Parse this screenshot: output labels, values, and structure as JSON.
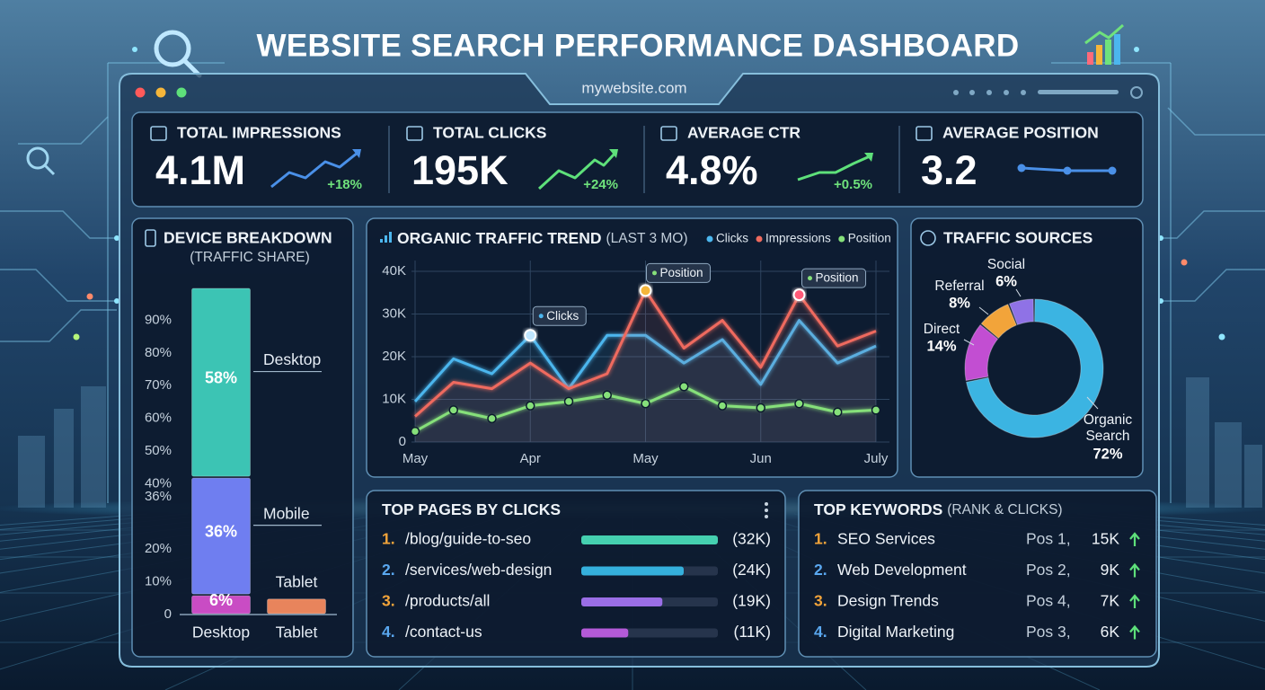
{
  "header": {
    "title": "WEBSITE SEARCH PERFORMANCE DASHBOARD",
    "url": "mywebsite.com"
  },
  "kpis": [
    {
      "label": "TOTAL IMPRESSIONS",
      "value": "4.1M",
      "change": "+18%"
    },
    {
      "label": "TOTAL CLICKS",
      "value": "195K",
      "change": "+24%"
    },
    {
      "label": "AVERAGE CTR",
      "value": "4.8%",
      "change": "+0.5%"
    },
    {
      "label": "AVERAGE POSITION",
      "value": "3.2"
    }
  ],
  "chart_data": [
    {
      "type": "bar",
      "stacked": true,
      "title": "DEVICE BREAKDOWN",
      "subtitle": "(TRAFFIC SHARE)",
      "categories": [
        "Desktop",
        "Tablet"
      ],
      "series": [
        {
          "name": "Tablet",
          "color": "#c94cc4",
          "colors": [
            "#c94cc4",
            "#e8845c"
          ],
          "values": [
            6,
            5
          ],
          "value_labels": [
            "6%",
            null
          ]
        },
        {
          "name": "Mobile",
          "color": "#6f7ef0",
          "values": [
            36,
            null
          ],
          "value_labels": [
            "36%",
            null
          ]
        },
        {
          "name": "Desktop",
          "color": "#3cc4b4",
          "values": [
            58,
            null
          ],
          "value_labels": [
            "58%",
            null
          ]
        }
      ],
      "ylim": [
        0,
        100
      ],
      "yticks": [
        0,
        {
          "value": 10,
          "label": "10%"
        },
        {
          "value": 20,
          "label": "20%"
        },
        {
          "value": 36,
          "label": "36%"
        },
        {
          "value": 40,
          "label": "40%"
        },
        {
          "value": 50,
          "label": "50%"
        },
        {
          "value": 60,
          "label": "60%"
        },
        {
          "value": 70,
          "label": "70%"
        },
        {
          "value": 80,
          "label": "80%"
        },
        {
          "value": 90,
          "label": "90%"
        }
      ],
      "grid": false
    },
    {
      "type": "line",
      "title": "ORGANIC TRAFFIC TREND",
      "subtitle": "(LAST 3 MO)",
      "categories": [
        "May",
        null,
        null,
        "Apr",
        null,
        null,
        "May",
        null,
        null,
        "Jun",
        null,
        null,
        "July"
      ],
      "series": [
        {
          "name": "Clicks",
          "color": "#4cb6ee",
          "area": true,
          "values": [
            9500,
            19500,
            16000,
            25000,
            12500,
            25000,
            25000,
            18500,
            24000,
            13500,
            28500,
            18500,
            22500
          ]
        },
        {
          "name": "Impressions",
          "color": "#ef6a5e",
          "area": true,
          "values": [
            6000,
            14000,
            12500,
            18500,
            12500,
            16000,
            35500,
            22000,
            28500,
            17500,
            34500,
            22500,
            26000
          ]
        },
        {
          "name": "Position",
          "color": "#86e07a",
          "markers": true,
          "values": [
            2500,
            7500,
            5500,
            8500,
            9500,
            11000,
            9000,
            13000,
            8500,
            8000,
            9000,
            7000,
            7500
          ]
        }
      ],
      "ylim": [
        0,
        40000
      ],
      "yticks": [
        0,
        {
          "value": 10000,
          "label": "10K"
        },
        {
          "value": 20000,
          "label": "20K"
        },
        {
          "value": 30000,
          "label": "30K"
        },
        {
          "value": 40000,
          "label": "40K"
        }
      ],
      "grid": true,
      "annotations": [
        "Clicks",
        "Position",
        "Position"
      ]
    },
    {
      "type": "pie",
      "donut": true,
      "title": "TRAFFIC SOURCES",
      "categories": [
        "Organic Search",
        "Direct",
        "Referral",
        "Social"
      ],
      "values": [
        72,
        14,
        8,
        6
      ],
      "value_labels": [
        "72%",
        "14%",
        "8%",
        "6%"
      ],
      "colors": [
        "#3bb4e2",
        "#c24ed2",
        "#f2a43a",
        "#8f72e6"
      ]
    },
    {
      "type": "bar",
      "horizontal": true,
      "title": "TOP PAGES BY CLICKS",
      "ranks": [
        "1.",
        "2.",
        "3.",
        "4."
      ],
      "categories": [
        "/blog/guide-to-seo",
        "/services/web-design",
        "/products/all",
        "/contact-us"
      ],
      "values": [
        32000,
        24000,
        19000,
        11000
      ],
      "value_labels": [
        "(32K)",
        "(24K)",
        "(19K)",
        "(11K)"
      ],
      "colors": [
        "#45d0b0",
        "#35b0dc",
        "#9a6ee6",
        "#b45ad8"
      ]
    }
  ],
  "keywords": {
    "title": "TOP KEYWORDS",
    "subtitle": "(RANK & CLICKS)",
    "rows": [
      [
        "1.",
        "SEO Services",
        "Pos 1,",
        "15K"
      ],
      [
        "2.",
        "Web Development",
        "Pos 2,",
        "9K"
      ],
      [
        "3.",
        "Design Trends",
        "Pos 4,",
        "7K"
      ],
      [
        "4.",
        "Digital Marketing",
        "Pos 3,",
        "6K"
      ]
    ]
  }
}
